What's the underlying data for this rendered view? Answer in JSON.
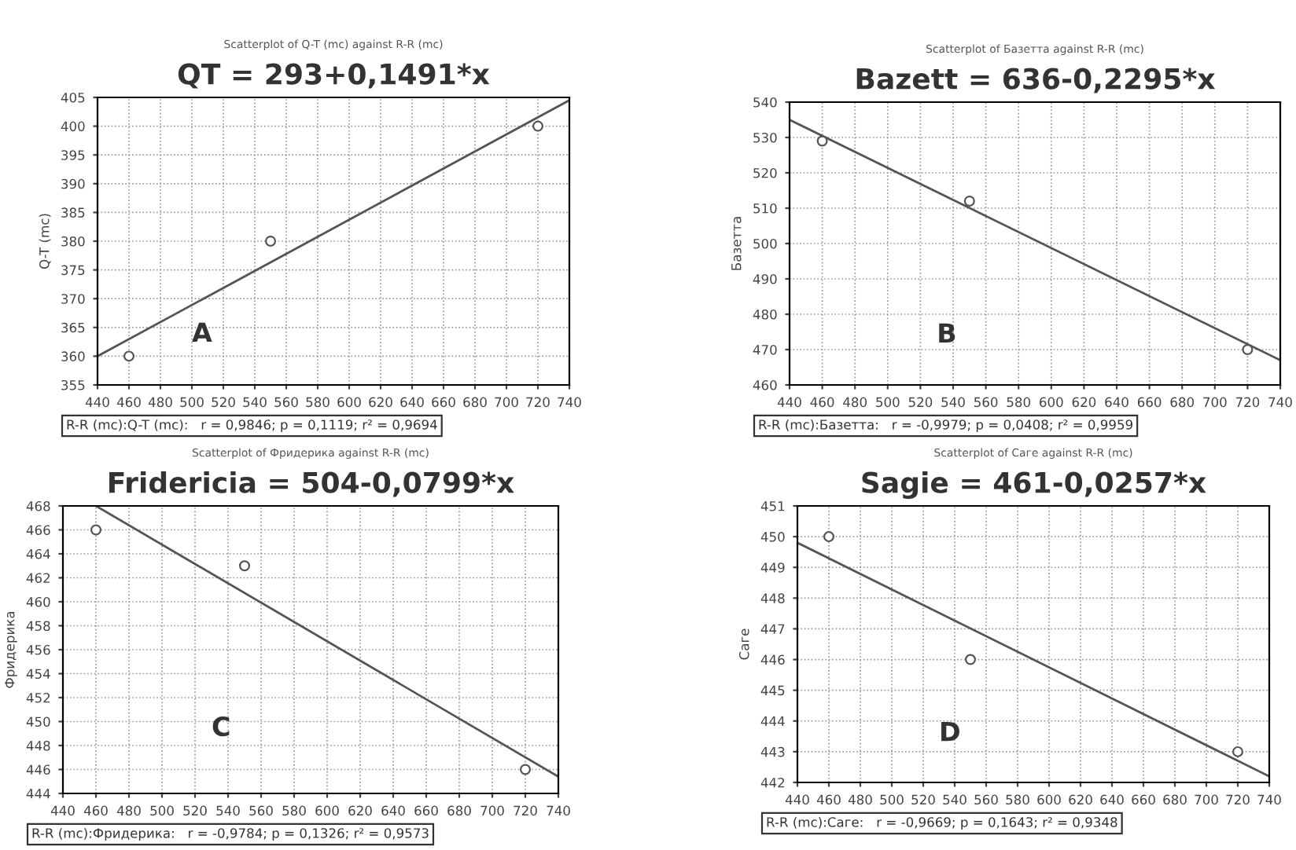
{
  "chart_data": [
    {
      "type": "scatter",
      "subtitle": "Scatterplot of Q-T (mc) against R-R (mc)",
      "title": "QT = 293+0,1491*x",
      "ylabel": "Q-T (mc)",
      "annotations": [
        "A",
        "R-R (mc):Q-T (mc):   r = 0,9846; p = 0,1119; r² = 0,9694"
      ],
      "xlim": [
        440,
        740
      ],
      "xticks": [
        440,
        460,
        480,
        500,
        520,
        540,
        560,
        580,
        600,
        620,
        640,
        660,
        680,
        700,
        720,
        740
      ],
      "ylim": [
        355,
        405
      ],
      "yticks": [
        355,
        360,
        365,
        370,
        375,
        380,
        385,
        390,
        395,
        400,
        405
      ],
      "grid": true,
      "series": [
        {
          "type": "scatter",
          "color": "#555555",
          "marker": "circle",
          "x": [
            460,
            550,
            720
          ],
          "values": [
            360,
            380,
            400
          ]
        },
        {
          "type": "line",
          "marker": "none",
          "color": "#555555",
          "x": [
            440,
            740
          ],
          "values": [
            360,
            404.5
          ]
        }
      ]
    },
    {
      "type": "scatter",
      "subtitle": "Scatterplot of Базетта against R-R (mc)",
      "title": "Bazett = 636-0,2295*x",
      "ylabel": "Базетта",
      "annotations": [
        "B",
        "R-R (mc):Базетта:   r = -0,9979; p = 0,0408; r² = 0,9959"
      ],
      "xlim": [
        440,
        740
      ],
      "xticks": [
        440,
        460,
        480,
        500,
        520,
        540,
        560,
        580,
        600,
        620,
        640,
        660,
        680,
        700,
        720,
        740
      ],
      "ylim": [
        460,
        540
      ],
      "yticks": [
        460,
        470,
        480,
        490,
        500,
        510,
        520,
        530,
        540
      ],
      "grid": true,
      "series": [
        {
          "type": "scatter",
          "color": "#555555",
          "marker": "circle",
          "x": [
            460,
            550,
            720
          ],
          "values": [
            529,
            512,
            470
          ]
        },
        {
          "type": "line",
          "marker": "none",
          "color": "#555555",
          "x": [
            440,
            740
          ],
          "values": [
            535,
            467
          ]
        }
      ]
    },
    {
      "type": "scatter",
      "subtitle": "Scatterplot of Фридерика against R-R (mc)",
      "title": "Fridericia = 504-0,0799*x",
      "ylabel": "Фридерика",
      "annotations": [
        "C",
        "R-R (mc):Фридерика:   r = -0,9784; p = 0,1326; r² = 0,9573"
      ],
      "xlim": [
        440,
        740
      ],
      "xticks": [
        440,
        460,
        480,
        500,
        520,
        540,
        560,
        580,
        600,
        620,
        640,
        660,
        680,
        700,
        720,
        740
      ],
      "ylim": [
        444,
        468
      ],
      "yticks": [
        444,
        446,
        448,
        450,
        452,
        454,
        456,
        458,
        460,
        462,
        464,
        466,
        468
      ],
      "grid": true,
      "series": [
        {
          "type": "scatter",
          "color": "#555555",
          "marker": "circle",
          "x": [
            460,
            550,
            720
          ],
          "values": [
            466,
            463,
            446
          ]
        },
        {
          "type": "line",
          "marker": "none",
          "color": "#555555",
          "x": [
            460,
            740
          ],
          "values": [
            468,
            445.4
          ]
        }
      ]
    },
    {
      "type": "scatter",
      "subtitle": "Scatterplot of Саге against R-R (mc)",
      "title": "Sagie = 461-0,0257*x",
      "ylabel": "Саге",
      "annotations": [
        "D",
        "R-R (mc):Саге:   r = -0,9669; p = 0,1643; r² = 0,9348"
      ],
      "xlim": [
        440,
        740
      ],
      "xticks": [
        440,
        460,
        480,
        500,
        520,
        540,
        560,
        580,
        600,
        620,
        640,
        660,
        680,
        700,
        720,
        740
      ],
      "ylim": [
        442,
        451
      ],
      "yticks": [
        442,
        443,
        444,
        445,
        446,
        447,
        448,
        449,
        450,
        451
      ],
      "grid": true,
      "series": [
        {
          "type": "scatter",
          "color": "#555555",
          "marker": "circle",
          "x": [
            460,
            550,
            720
          ],
          "values": [
            450,
            446,
            443
          ]
        },
        {
          "type": "line",
          "marker": "none",
          "color": "#555555",
          "x": [
            440,
            740
          ],
          "values": [
            449.8,
            442.2
          ]
        }
      ]
    }
  ]
}
